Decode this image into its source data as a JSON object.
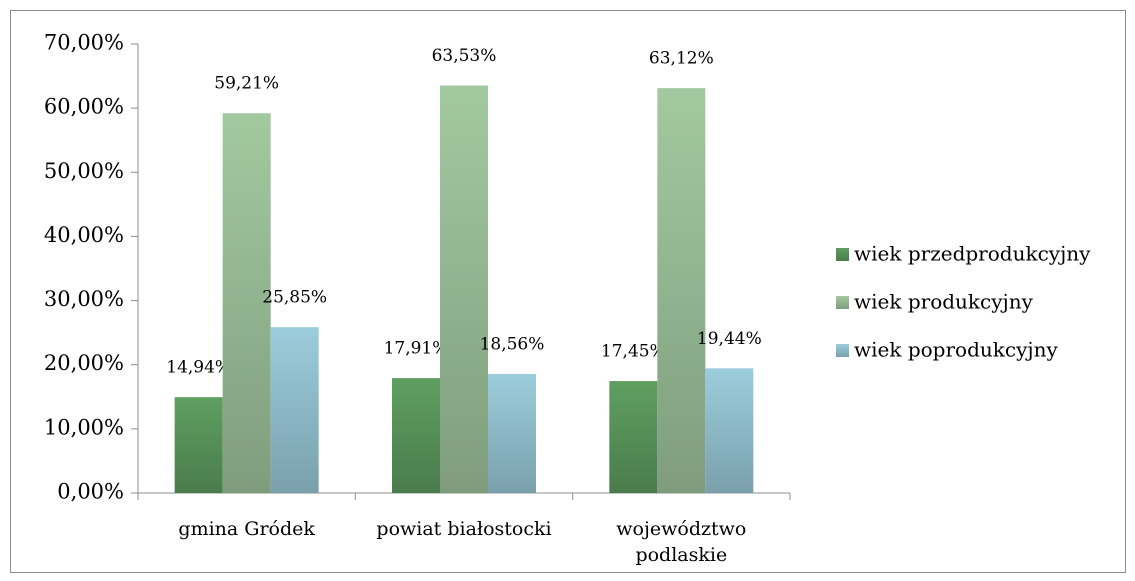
{
  "chart_data": {
    "type": "bar",
    "categories": [
      "gmina Gródek",
      "powiat białostocki",
      "województwo podlaskie"
    ],
    "series": [
      {
        "name": "wiek przedprodukcyjny",
        "color": "#5f9f60",
        "values": [
          14.94,
          17.91,
          17.45
        ],
        "value_labels": [
          "14,94%",
          "17,91%",
          "17,45%"
        ]
      },
      {
        "name": "wiek produkcyjny",
        "color": "#a3c9a0",
        "values": [
          59.21,
          63.53,
          63.12
        ],
        "value_labels": [
          "59,21%",
          "63,53%",
          "63,12%"
        ]
      },
      {
        "name": "wiek poprodukcyjny",
        "color": "#9ccddc",
        "values": [
          25.85,
          18.56,
          19.44
        ],
        "value_labels": [
          "25,85%",
          "18,56%",
          "19,44%"
        ]
      }
    ],
    "ylim": [
      0,
      70
    ],
    "yticks": [
      {
        "value": 0,
        "label": "0,00%"
      },
      {
        "value": 10,
        "label": "10,00%"
      },
      {
        "value": 20,
        "label": "20,00%"
      },
      {
        "value": 30,
        "label": "30,00%"
      },
      {
        "value": 40,
        "label": "40,00%"
      },
      {
        "value": 50,
        "label": "50,00%"
      },
      {
        "value": 60,
        "label": "60,00%"
      },
      {
        "value": 70,
        "label": "70,00%"
      }
    ],
    "grid": false,
    "legend": "right"
  }
}
